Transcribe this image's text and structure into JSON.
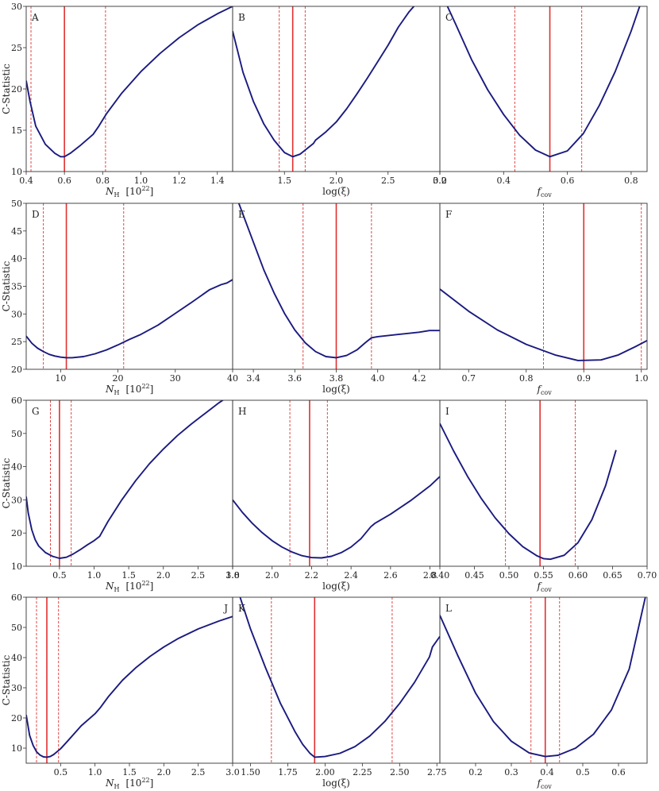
{
  "figure": {
    "ylabel": "C-Statistic",
    "xlabels": {
      "nh": {
        "main": "N",
        "sub": "H",
        "unit": "[10",
        "sup": "22",
        "close": "]"
      },
      "logxi": "log(ξ)",
      "fcov": {
        "main": "f",
        "sub": "cov"
      }
    },
    "colors": {
      "curve": "#1a1a80",
      "best": "#e03030",
      "bounds": "#e03030",
      "frame": "#333333"
    }
  },
  "chart_data": [
    {
      "type": "line",
      "panel": "A",
      "xkind": "nh",
      "xlim": [
        0.4,
        1.48
      ],
      "ylim": [
        10,
        30
      ],
      "xticks": [
        "0.4",
        "0.6",
        "0.8",
        "1.0",
        "1.2",
        "1.4"
      ],
      "xtick_vals": [
        0.4,
        0.6,
        0.8,
        1.0,
        1.2,
        1.4
      ],
      "yticks": [
        "10",
        "15",
        "20",
        "25",
        "30"
      ],
      "ytick_vals": [
        10,
        15,
        20,
        25,
        30
      ],
      "best": 0.6,
      "bounds": [
        0.425,
        0.815
      ],
      "series": [
        {
          "x": [
            0.4,
            0.42,
            0.45,
            0.5,
            0.55,
            0.58,
            0.6,
            0.63,
            0.68,
            0.75,
            0.78,
            0.82,
            0.9,
            1.0,
            1.1,
            1.2,
            1.3,
            1.4,
            1.48
          ],
          "y": [
            21,
            18.5,
            15.5,
            13.3,
            12.2,
            11.8,
            11.8,
            12.2,
            13.1,
            14.5,
            15.5,
            17,
            19.5,
            22.1,
            24.3,
            26.2,
            27.8,
            29.1,
            30
          ]
        }
      ]
    },
    {
      "type": "line",
      "panel": "B",
      "xkind": "logxi",
      "xlim": [
        1.0,
        3.0
      ],
      "ylim": [
        10,
        30
      ],
      "xticks": [
        "1.5",
        "2.0",
        "2.5",
        "3.0"
      ],
      "xtick_vals": [
        1.5,
        2.0,
        2.5,
        3.0
      ],
      "yticks": [],
      "ytick_vals": [],
      "best": 1.58,
      "bounds": [
        1.45,
        1.7
      ],
      "series": [
        {
          "x": [
            1.0,
            1.1,
            1.2,
            1.3,
            1.4,
            1.5,
            1.58,
            1.65,
            1.72,
            1.78,
            1.8,
            1.9,
            2.0,
            2.1,
            2.2,
            2.3,
            2.4,
            2.5,
            2.6,
            2.7,
            2.77,
            2.85
          ],
          "y": [
            27,
            22,
            18.5,
            15.8,
            13.8,
            12.3,
            11.8,
            12.1,
            12.8,
            13.4,
            13.8,
            14.8,
            16,
            17.6,
            19.4,
            21.3,
            23.3,
            25.3,
            27.5,
            29.3,
            30.3,
            31.5
          ]
        }
      ]
    },
    {
      "type": "line",
      "panel": "C",
      "xkind": "fcov",
      "xlim": [
        0.2,
        0.85
      ],
      "ylim": [
        10,
        30
      ],
      "xticks": [
        "0.2",
        "0.4",
        "0.6",
        "0.8"
      ],
      "xtick_vals": [
        0.2,
        0.4,
        0.6,
        0.8
      ],
      "yticks": [],
      "ytick_vals": [],
      "best": 0.545,
      "bounds": [
        0.435,
        0.645
      ],
      "series": [
        {
          "x": [
            0.2,
            0.25,
            0.3,
            0.35,
            0.4,
            0.45,
            0.5,
            0.545,
            0.6,
            0.65,
            0.7,
            0.75,
            0.8,
            0.84
          ],
          "y": [
            32,
            27.8,
            23.5,
            19.9,
            16.9,
            14.4,
            12.6,
            11.8,
            12.5,
            14.6,
            18,
            22.1,
            27,
            31.5
          ]
        }
      ]
    },
    {
      "type": "line",
      "panel": "D",
      "xkind": "nh",
      "xlim": [
        4,
        40
      ],
      "ylim": [
        20,
        50
      ],
      "xticks": [
        "10",
        "20",
        "30",
        "40"
      ],
      "xtick_vals": [
        10,
        20,
        30,
        40
      ],
      "yticks": [
        "20",
        "25",
        "30",
        "35",
        "40",
        "45",
        "50"
      ],
      "ytick_vals": [
        20,
        25,
        30,
        35,
        40,
        45,
        50
      ],
      "best": 11,
      "bounds": [
        7,
        21
      ],
      "series": [
        {
          "x": [
            4,
            5,
            6,
            7,
            8,
            9,
            10,
            11,
            12,
            14,
            16,
            18,
            20,
            22,
            24,
            27,
            30,
            33,
            36,
            38,
            39,
            40
          ],
          "y": [
            26,
            24.7,
            23.8,
            23.2,
            22.7,
            22.4,
            22.2,
            22.1,
            22.1,
            22.3,
            22.8,
            23.5,
            24.4,
            25.4,
            26.3,
            28,
            30.1,
            32.2,
            34.4,
            35.3,
            35.6,
            36.2
          ]
        }
      ]
    },
    {
      "type": "line",
      "panel": "E",
      "xkind": "logxi",
      "xlim": [
        3.3,
        4.3
      ],
      "ylim": [
        20,
        50
      ],
      "xticks": [
        "3.4",
        "3.6",
        "3.8",
        "4.0",
        "4.2"
      ],
      "xtick_vals": [
        3.4,
        3.6,
        3.8,
        4.0,
        4.2
      ],
      "yticks": [],
      "ytick_vals": [],
      "best": 3.8,
      "bounds": [
        3.64,
        3.97
      ],
      "series": [
        {
          "x": [
            3.33,
            3.4,
            3.45,
            3.5,
            3.55,
            3.6,
            3.65,
            3.7,
            3.75,
            3.8,
            3.85,
            3.9,
            3.94,
            3.97,
            4.0,
            4.1,
            4.2,
            4.25,
            4.3
          ],
          "y": [
            50,
            43,
            38,
            33.8,
            30.1,
            27.1,
            24.8,
            23.2,
            22.3,
            22.1,
            22.5,
            23.5,
            24.8,
            25.7,
            25.9,
            26.3,
            26.7,
            27,
            27
          ]
        }
      ]
    },
    {
      "type": "line",
      "panel": "F",
      "xkind": "fcov",
      "xlim": [
        0.65,
        1.01
      ],
      "ylim": [
        20,
        50
      ],
      "xticks": [
        "0.7",
        "0.8",
        "0.9",
        "1.0"
      ],
      "xtick_vals": [
        0.7,
        0.8,
        0.9,
        1.0
      ],
      "yticks": [],
      "ytick_vals": [],
      "best": 0.9,
      "bounds": [
        0.83,
        1.0
      ],
      "series": [
        {
          "x": [
            0.65,
            0.7,
            0.75,
            0.8,
            0.85,
            0.89,
            0.93,
            0.96,
            0.99,
            1.01
          ],
          "y": [
            34.5,
            30.5,
            27.1,
            24.5,
            22.6,
            21.6,
            21.7,
            22.6,
            24.1,
            25.2
          ]
        }
      ]
    },
    {
      "type": "line",
      "panel": "G",
      "xkind": "nh",
      "xlim": [
        0.02,
        3.0
      ],
      "ylim": [
        10,
        60
      ],
      "xticks": [
        "0.5",
        "1.0",
        "1.5",
        "2.0",
        "2.5",
        "3.0"
      ],
      "xtick_vals": [
        0.5,
        1.0,
        1.5,
        2.0,
        2.5,
        3.0
      ],
      "yticks": [
        "10",
        "20",
        "30",
        "40",
        "50",
        "60"
      ],
      "ytick_vals": [
        10,
        20,
        30,
        40,
        50,
        60
      ],
      "best": 0.5,
      "bounds": [
        0.37,
        0.67
      ],
      "series": [
        {
          "x": [
            0.02,
            0.05,
            0.1,
            0.15,
            0.2,
            0.3,
            0.4,
            0.5,
            0.6,
            0.7,
            0.8,
            0.9,
            1.0,
            1.08,
            1.2,
            1.4,
            1.6,
            1.8,
            2.0,
            2.2,
            2.4,
            2.6,
            2.8,
            3.0
          ],
          "y": [
            31,
            26,
            21,
            18,
            16.1,
            14.1,
            13,
            12.4,
            12.7,
            13.7,
            15,
            16.4,
            17.7,
            19,
            23.5,
            30,
            35.8,
            40.9,
            45.3,
            49.3,
            52.8,
            56,
            59.2,
            62
          ]
        }
      ]
    },
    {
      "type": "line",
      "panel": "H",
      "xkind": "logxi",
      "xlim": [
        1.8,
        2.85
      ],
      "ylim": [
        10,
        60
      ],
      "xticks": [
        "1.8",
        "2.0",
        "2.2",
        "2.4",
        "2.6",
        "2.8"
      ],
      "xtick_vals": [
        1.8,
        2.0,
        2.2,
        2.4,
        2.6,
        2.8
      ],
      "yticks": [],
      "ytick_vals": [],
      "best": 2.19,
      "bounds": [
        2.09,
        2.28
      ],
      "series": [
        {
          "x": [
            1.8,
            1.85,
            1.9,
            1.95,
            2.0,
            2.05,
            2.1,
            2.15,
            2.2,
            2.25,
            2.3,
            2.35,
            2.4,
            2.45,
            2.5,
            2.52,
            2.6,
            2.7,
            2.8,
            2.85
          ],
          "y": [
            30,
            26.2,
            22.9,
            20.1,
            17.7,
            15.8,
            14.3,
            13.2,
            12.6,
            12.5,
            13,
            14.1,
            15.8,
            18.3,
            21.9,
            22.9,
            25.7,
            29.7,
            34.2,
            37
          ]
        }
      ]
    },
    {
      "type": "line",
      "panel": "I",
      "xkind": "fcov",
      "xlim": [
        0.4,
        0.7
      ],
      "ylim": [
        10,
        60
      ],
      "xticks": [
        "0.40",
        "0.45",
        "0.50",
        "0.55",
        "0.60",
        "0.65",
        "0.70"
      ],
      "xtick_vals": [
        0.4,
        0.45,
        0.5,
        0.55,
        0.6,
        0.65,
        0.7
      ],
      "yticks": [],
      "ytick_vals": [],
      "best": 0.545,
      "bounds": [
        0.495,
        0.596
      ],
      "series": [
        {
          "x": [
            0.4,
            0.42,
            0.44,
            0.46,
            0.48,
            0.5,
            0.52,
            0.54,
            0.55,
            0.56,
            0.58,
            0.6,
            0.62,
            0.64,
            0.655
          ],
          "y": [
            53,
            44.7,
            37.1,
            30.4,
            24.6,
            19.8,
            15.9,
            13.2,
            12.3,
            12.1,
            13.3,
            17.1,
            24,
            34.3,
            45
          ]
        }
      ]
    },
    {
      "type": "line",
      "panel": "J",
      "xkind": "nh",
      "xlim": [
        0.0,
        3.0
      ],
      "ylim": [
        5,
        60
      ],
      "xticks": [
        "0.5",
        "1.0",
        "1.5",
        "2.0",
        "2.5",
        "3.0"
      ],
      "xtick_vals": [
        0.5,
        1.0,
        1.5,
        2.0,
        2.5,
        3.0
      ],
      "yticks": [
        "10",
        "20",
        "30",
        "40",
        "50",
        "60"
      ],
      "ytick_vals": [
        10,
        20,
        30,
        40,
        50,
        60
      ],
      "best": 0.3,
      "bounds": [
        0.15,
        0.47
      ],
      "series": [
        {
          "x": [
            0.0,
            0.05,
            0.1,
            0.15,
            0.2,
            0.25,
            0.3,
            0.35,
            0.4,
            0.5,
            0.6,
            0.8,
            1.0,
            1.08,
            1.2,
            1.4,
            1.6,
            1.8,
            2.0,
            2.2,
            2.5,
            2.8,
            3.0
          ],
          "y": [
            21,
            14.2,
            10.9,
            8.8,
            7.7,
            7.1,
            7,
            7.2,
            7.9,
            9.8,
            12.3,
            17.4,
            21.4,
            23.5,
            27.2,
            32.5,
            36.8,
            40.4,
            43.5,
            46.2,
            49.5,
            52.1,
            53.6
          ]
        }
      ]
    },
    {
      "type": "line",
      "panel": "K",
      "xkind": "logxi",
      "xlim": [
        1.38,
        2.77
      ],
      "ylim": [
        5,
        60
      ],
      "xticks": [
        "1.50",
        "1.75",
        "2.00",
        "2.25",
        "2.50",
        "2.75"
      ],
      "xtick_vals": [
        1.5,
        1.75,
        2.0,
        2.25,
        2.5,
        2.75
      ],
      "yticks": [],
      "ytick_vals": [],
      "best": 1.93,
      "bounds": [
        1.64,
        2.45
      ],
      "series": [
        {
          "x": [
            1.43,
            1.5,
            1.6,
            1.7,
            1.8,
            1.85,
            1.9,
            1.93,
            2.0,
            2.1,
            2.2,
            2.3,
            2.4,
            2.5,
            2.6,
            2.7,
            2.72,
            2.77
          ],
          "y": [
            60,
            49.5,
            36.7,
            24.9,
            15.3,
            11.2,
            8.2,
            7,
            7.2,
            8.3,
            10.5,
            14,
            18.8,
            24.8,
            31.8,
            40.2,
            43.5,
            47
          ]
        }
      ]
    },
    {
      "type": "line",
      "panel": "L",
      "xkind": "fcov",
      "xlim": [
        0.1,
        0.68
      ],
      "ylim": [
        5,
        60
      ],
      "xticks": [
        "0.2",
        "0.3",
        "0.4",
        "0.5",
        "0.6"
      ],
      "xtick_vals": [
        0.2,
        0.3,
        0.4,
        0.5,
        0.6
      ],
      "yticks": [],
      "ytick_vals": [],
      "best": 0.395,
      "bounds": [
        0.355,
        0.435
      ],
      "series": [
        {
          "x": [
            0.1,
            0.15,
            0.2,
            0.25,
            0.3,
            0.35,
            0.395,
            0.43,
            0.48,
            0.53,
            0.58,
            0.63,
            0.675
          ],
          "y": [
            54,
            40.7,
            28.2,
            18.8,
            12.3,
            8.4,
            7.2,
            7.6,
            10,
            14.6,
            22.6,
            36.2,
            60
          ]
        }
      ]
    }
  ]
}
